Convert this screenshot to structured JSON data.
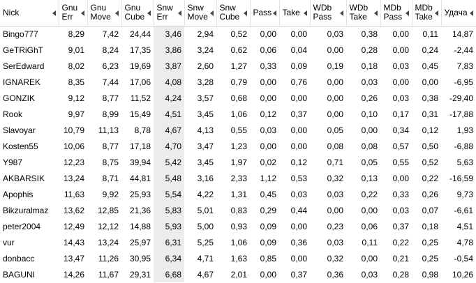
{
  "table": {
    "columns": [
      "Nick",
      "Gnu Err",
      "Gnu Move",
      "Gnu Cube",
      "Snw Err",
      "Snw Move",
      "Snw Cube",
      "Pass",
      "Take",
      "WDb Pass",
      "WDb Take",
      "MDb Pass",
      "MDb Take",
      "Удача"
    ],
    "rows": [
      [
        "Bingo777",
        "8,29",
        "7,42",
        "24,44",
        "3,46",
        "2,94",
        "0,52",
        "0,00",
        "0,00",
        "0,03",
        "0,38",
        "0,00",
        "0,11",
        "14,87"
      ],
      [
        "GeTRiGhT",
        "9,01",
        "8,24",
        "17,35",
        "3,86",
        "3,24",
        "0,62",
        "0,06",
        "0,04",
        "0,00",
        "0,28",
        "0,00",
        "0,24",
        "-2,44"
      ],
      [
        "SerEdward",
        "8,02",
        "6,23",
        "19,69",
        "3,87",
        "2,60",
        "1,27",
        "0,33",
        "0,09",
        "0,19",
        "0,18",
        "0,03",
        "0,45",
        "7,83"
      ],
      [
        "IGNAREK",
        "8,35",
        "7,44",
        "17,06",
        "4,08",
        "3,28",
        "0,79",
        "0,00",
        "0,76",
        "0,00",
        "0,03",
        "0,00",
        "0,00",
        "-6,95"
      ],
      [
        "GONZIK",
        "9,12",
        "8,77",
        "11,52",
        "4,24",
        "3,57",
        "0,68",
        "0,00",
        "0,00",
        "0,00",
        "0,26",
        "0,03",
        "0,38",
        "-29,40"
      ],
      [
        "Rook",
        "9,97",
        "8,99",
        "15,49",
        "4,51",
        "3,45",
        "1,06",
        "0,12",
        "0,37",
        "0,00",
        "0,10",
        "0,17",
        "0,31",
        "-17,88"
      ],
      [
        "Slavoyar",
        "10,79",
        "11,13",
        "8,78",
        "4,67",
        "4,13",
        "0,55",
        "0,03",
        "0,00",
        "0,05",
        "0,00",
        "0,34",
        "0,12",
        "1,93"
      ],
      [
        "Kosten55",
        "10,06",
        "8,77",
        "17,18",
        "4,70",
        "3,47",
        "1,23",
        "0,00",
        "0,00",
        "0,08",
        "0,08",
        "0,57",
        "0,50",
        "-6,88"
      ],
      [
        "Y987",
        "12,23",
        "8,75",
        "39,94",
        "5,42",
        "3,45",
        "1,97",
        "0,02",
        "0,12",
        "0,71",
        "0,05",
        "0,55",
        "0,52",
        "5,63"
      ],
      [
        "AKBARSIK",
        "13,24",
        "8,71",
        "44,81",
        "5,48",
        "3,16",
        "2,33",
        "1,12",
        "0,53",
        "0,32",
        "0,13",
        "0,00",
        "0,22",
        "-16,59"
      ],
      [
        "Apophis",
        "11,63",
        "9,92",
        "25,93",
        "5,54",
        "4,22",
        "1,31",
        "0,45",
        "0,03",
        "0,03",
        "0,22",
        "0,33",
        "0,26",
        "9,73"
      ],
      [
        "Bikzuralmaz",
        "13,62",
        "12,85",
        "21,36",
        "5,83",
        "5,01",
        "0,83",
        "0,29",
        "0,44",
        "0,00",
        "0,00",
        "0,03",
        "0,07",
        "-6,61"
      ],
      [
        "peter2004",
        "12,49",
        "12,12",
        "14,88",
        "5,93",
        "5,00",
        "0,93",
        "0,09",
        "0,00",
        "0,23",
        "0,06",
        "0,37",
        "0,18",
        "4,51"
      ],
      [
        "vur",
        "14,43",
        "13,24",
        "25,97",
        "6,31",
        "5,25",
        "1,06",
        "0,09",
        "0,36",
        "0,03",
        "0,11",
        "0,22",
        "0,25",
        "4,78"
      ],
      [
        "donbacc",
        "13,47",
        "11,26",
        "30,95",
        "6,34",
        "4,71",
        "1,63",
        "0,85",
        "0,00",
        "0,32",
        "0,00",
        "0,21",
        "0,25",
        "-0,54"
      ],
      [
        "BAGUNI",
        "14,26",
        "11,67",
        "29,31",
        "6,68",
        "4,67",
        "2,01",
        "0,00",
        "0,37",
        "0,36",
        "0,03",
        "0,28",
        "0,98",
        "10,26"
      ]
    ]
  }
}
